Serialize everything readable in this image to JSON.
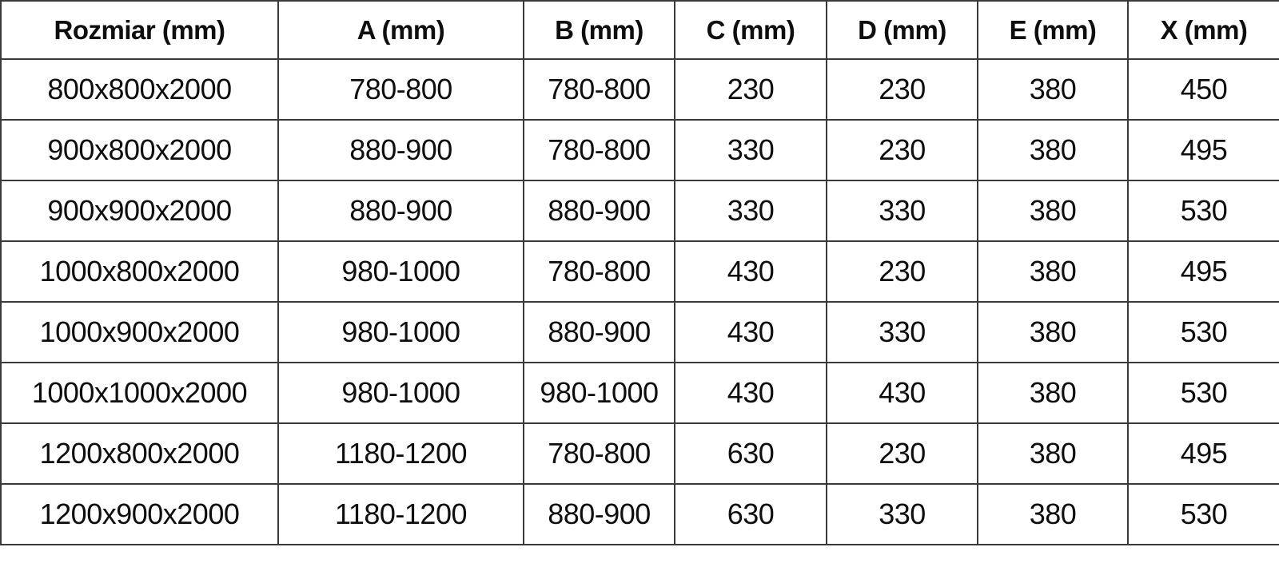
{
  "chart_data": {
    "type": "table",
    "columns": [
      "Rozmiar (mm)",
      "A (mm)",
      "B (mm)",
      "C (mm)",
      "D (mm)",
      "E (mm)",
      "X (mm)"
    ],
    "rows": [
      [
        "800x800x2000",
        "780-800",
        "780-800",
        "230",
        "230",
        "380",
        "450"
      ],
      [
        "900x800x2000",
        "880-900",
        "780-800",
        "330",
        "230",
        "380",
        "495"
      ],
      [
        "900x900x2000",
        "880-900",
        "880-900",
        "330",
        "330",
        "380",
        "530"
      ],
      [
        "1000x800x2000",
        "980-1000",
        "780-800",
        "430",
        "230",
        "380",
        "495"
      ],
      [
        "1000x900x2000",
        "980-1000",
        "880-900",
        "430",
        "330",
        "380",
        "530"
      ],
      [
        "1000x1000x2000",
        "980-1000",
        "980-1000",
        "430",
        "430",
        "380",
        "530"
      ],
      [
        "1200x800x2000",
        "1180-1200",
        "780-800",
        "630",
        "230",
        "380",
        "495"
      ],
      [
        "1200x900x2000",
        "1180-1200",
        "880-900",
        "630",
        "330",
        "380",
        "530"
      ]
    ],
    "title": "",
    "layout": {
      "grid": "on",
      "header_row": true,
      "text_align": "center"
    },
    "colors": {
      "text": "#0e0e0e",
      "grid_line": "#3a3a3a",
      "background": "#ffffff"
    }
  }
}
